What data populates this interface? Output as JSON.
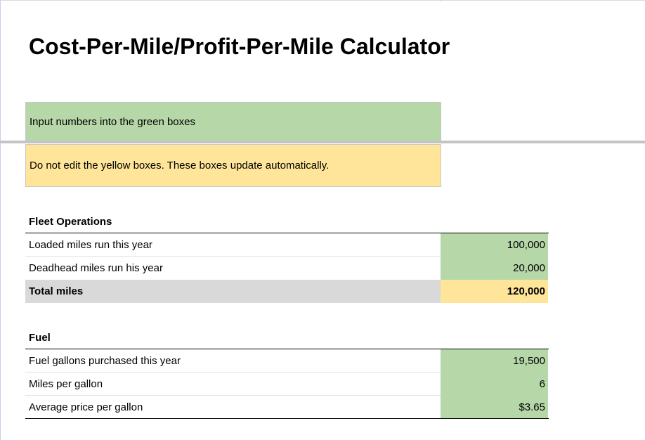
{
  "title": "Cost-Per-Mile/Profit-Per-Mile Calculator",
  "notes": {
    "green": "Input numbers into the green boxes",
    "yellow": "Do not edit the yellow boxes. These boxes update automatically."
  },
  "sections": [
    {
      "heading": "Fleet Operations",
      "rows": [
        {
          "label": "Loaded miles run this year",
          "value": "100,000"
        },
        {
          "label": "Deadhead miles run his year",
          "value": "20,000"
        },
        {
          "label": "Total miles",
          "value": "120,000"
        }
      ]
    },
    {
      "heading": "Fuel",
      "rows": [
        {
          "label": "Fuel gallons purchased this year",
          "value": "19,500"
        },
        {
          "label": "Miles per gallon",
          "value": "6"
        },
        {
          "label": "Average price per gallon",
          "value": "$3.65"
        }
      ]
    }
  ]
}
